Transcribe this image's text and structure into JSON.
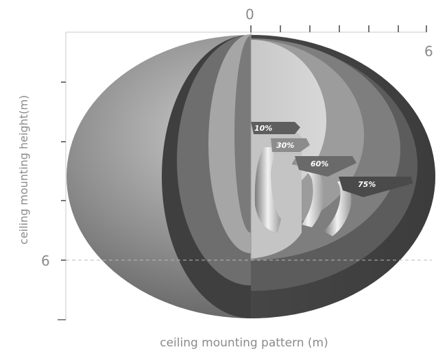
{
  "diagram": {
    "top_tick_zero": "0",
    "top_tick_six": "6",
    "left_tick_six": "6",
    "y_axis_label": "ceiling mounting height(m)",
    "x_axis_label": "ceiling mounting pattern (m)",
    "zones": [
      {
        "label": "10%",
        "color": "#5e5e5e"
      },
      {
        "label": "30%",
        "color": "#8c8c8c"
      },
      {
        "label": "60%",
        "color": "#6a6a6a"
      },
      {
        "label": "75%",
        "color": "#4a4a4a"
      }
    ]
  }
}
